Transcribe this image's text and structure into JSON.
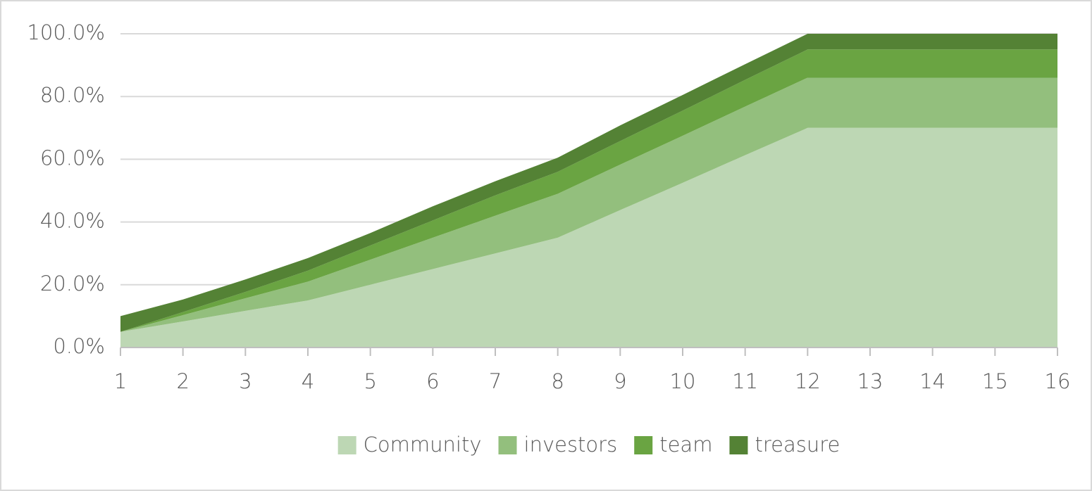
{
  "chart_data": {
    "type": "stacked_area",
    "categories": [
      "1",
      "2",
      "3",
      "4",
      "5",
      "6",
      "7",
      "8",
      "9",
      "10",
      "11",
      "12",
      "13",
      "14",
      "15",
      "16"
    ],
    "series": [
      {
        "name": "Community",
        "color": "#bdd7b4",
        "values": [
          5,
          8.3,
          11.7,
          15,
          20,
          25,
          30,
          35,
          43.8,
          52.5,
          61.3,
          70,
          70,
          70,
          70,
          70
        ]
      },
      {
        "name": "investors",
        "color": "#93bf7d",
        "values": [
          0,
          2,
          4,
          6,
          8,
          10,
          12,
          14,
          14.5,
          15,
          15.5,
          16,
          16,
          16,
          16,
          16
        ]
      },
      {
        "name": "team",
        "color": "#6aa442",
        "values": [
          0,
          1,
          2,
          3.5,
          4.5,
          5.5,
          6.5,
          7,
          7.5,
          8,
          8.5,
          9,
          9,
          9,
          9,
          9
        ]
      },
      {
        "name": "treasure",
        "color": "#548235",
        "values": [
          5,
          4,
          4,
          4,
          4,
          4.5,
          4.5,
          4.5,
          5,
          5,
          5,
          5,
          5,
          5,
          5,
          5
        ]
      }
    ],
    "ylim": [
      0,
      100
    ],
    "yticks": [
      {
        "value": 0,
        "label": "0.0%"
      },
      {
        "value": 20,
        "label": "20.0%"
      },
      {
        "value": 40,
        "label": "40.0%"
      },
      {
        "value": 60,
        "label": "60.0%"
      },
      {
        "value": 80,
        "label": "80.0%"
      },
      {
        "value": 100,
        "label": "100.0%"
      }
    ],
    "grid": true,
    "legend": "bottom"
  }
}
